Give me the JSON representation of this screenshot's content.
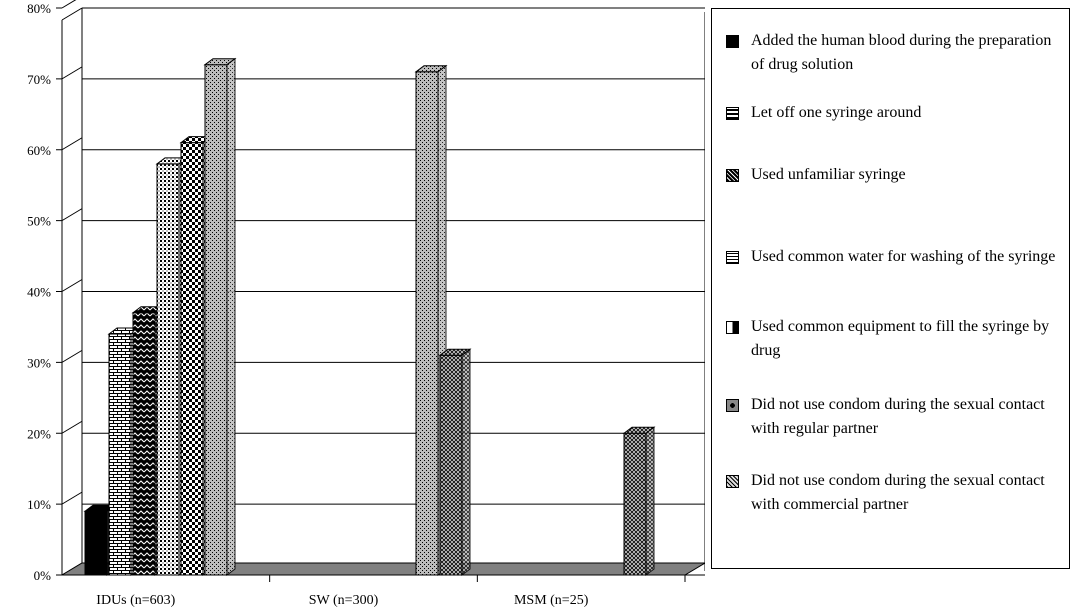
{
  "chart_data": {
    "type": "bar",
    "categories": [
      "IDUs (n=603)",
      "SW (n=300)",
      "MSM (n=25)"
    ],
    "y_ticks": [
      "0%",
      "10%",
      "20%",
      "30%",
      "40%",
      "50%",
      "60%",
      "70%",
      "80%"
    ],
    "ylim": [
      0,
      80
    ],
    "grid": true,
    "legend_position": "right",
    "series": [
      {
        "name": "Added the human blood during the preparation of drug solution",
        "values": [
          9,
          null,
          null
        ]
      },
      {
        "name": "Let off one syringe around",
        "values": [
          34,
          null,
          null
        ]
      },
      {
        "name": "Used unfamiliar syringe",
        "values": [
          37,
          null,
          null
        ]
      },
      {
        "name": "Used common water for washing of the syringe",
        "values": [
          58,
          null,
          null
        ]
      },
      {
        "name": "Used common equipment to fill the syringe by drug",
        "values": [
          61,
          null,
          null
        ]
      },
      {
        "name": "Did not use condom during the sexual contact with regular partner",
        "values": [
          72,
          71,
          null
        ]
      },
      {
        "name": "Did not use condom during the sexual contact with commercial partner",
        "values": [
          null,
          31,
          20
        ]
      }
    ]
  },
  "legend": {
    "items": [
      {
        "text": "Added the human blood during the preparation of drug solution",
        "pattern": "solid"
      },
      {
        "text": "Let off one syringe around",
        "pattern": "brick"
      },
      {
        "text": "Used unfamiliar syringe",
        "pattern": "zigzag"
      },
      {
        "text": "Used common water for washing of the syringe",
        "pattern": "grid"
      },
      {
        "text": "Used common equipment to fill the syringe by drug",
        "pattern": "check"
      },
      {
        "text": "Did not use condom during the sexual contact with regular partner",
        "pattern": "dots"
      },
      {
        "text": "Did not use condom during the sexual contact with commercial partner",
        "pattern": "cross"
      }
    ]
  },
  "colors": {
    "floor": "#808080",
    "grid": "#000000",
    "bar_light": "#c8c8c8"
  }
}
